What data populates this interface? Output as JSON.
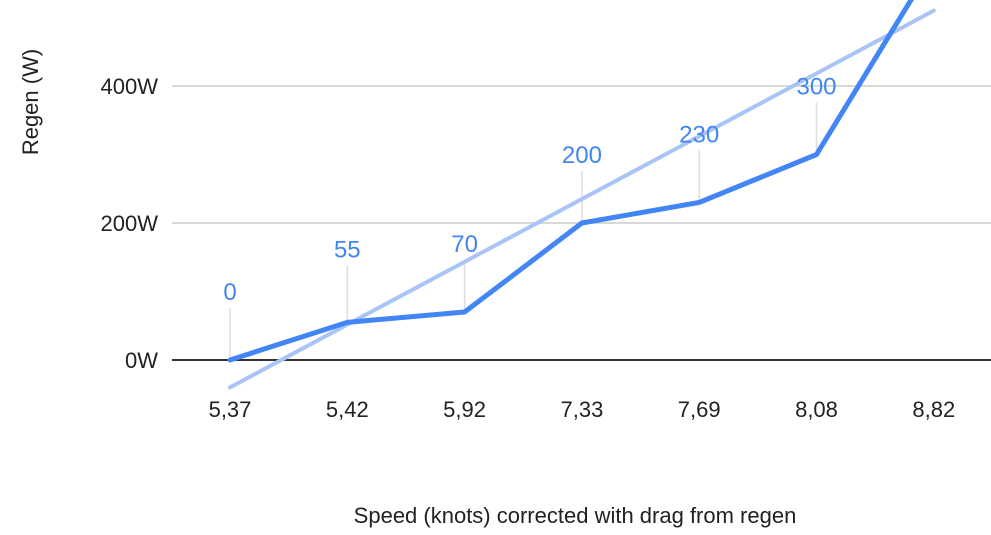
{
  "chart_data": {
    "type": "line",
    "categories": [
      "5,37",
      "5,42",
      "5,92",
      "7,33",
      "7,69",
      "8,08",
      "8,82"
    ],
    "series": [
      {
        "values": [
          0,
          55,
          70,
          200,
          230,
          300,
          580
        ],
        "data_labels": [
          "0",
          "55",
          "70",
          "200",
          "230",
          "300",
          ""
        ]
      }
    ],
    "trendline": {
      "start": -40,
      "end": 510
    },
    "xlabel": "Speed (knots) corrected with drag from regen",
    "ylabel": "Regen (W)",
    "yticks": [
      {
        "value": 0,
        "label": "0W"
      },
      {
        "value": 200,
        "label": "200W"
      },
      {
        "value": 400,
        "label": "400W"
      }
    ],
    "ylim": [
      0,
      500
    ],
    "grid": true,
    "colors": {
      "line": "#4285f4",
      "trend": "#a9c4f5",
      "label": "#4285f4",
      "grid": "#cccccc",
      "baseline": "#333333"
    }
  }
}
